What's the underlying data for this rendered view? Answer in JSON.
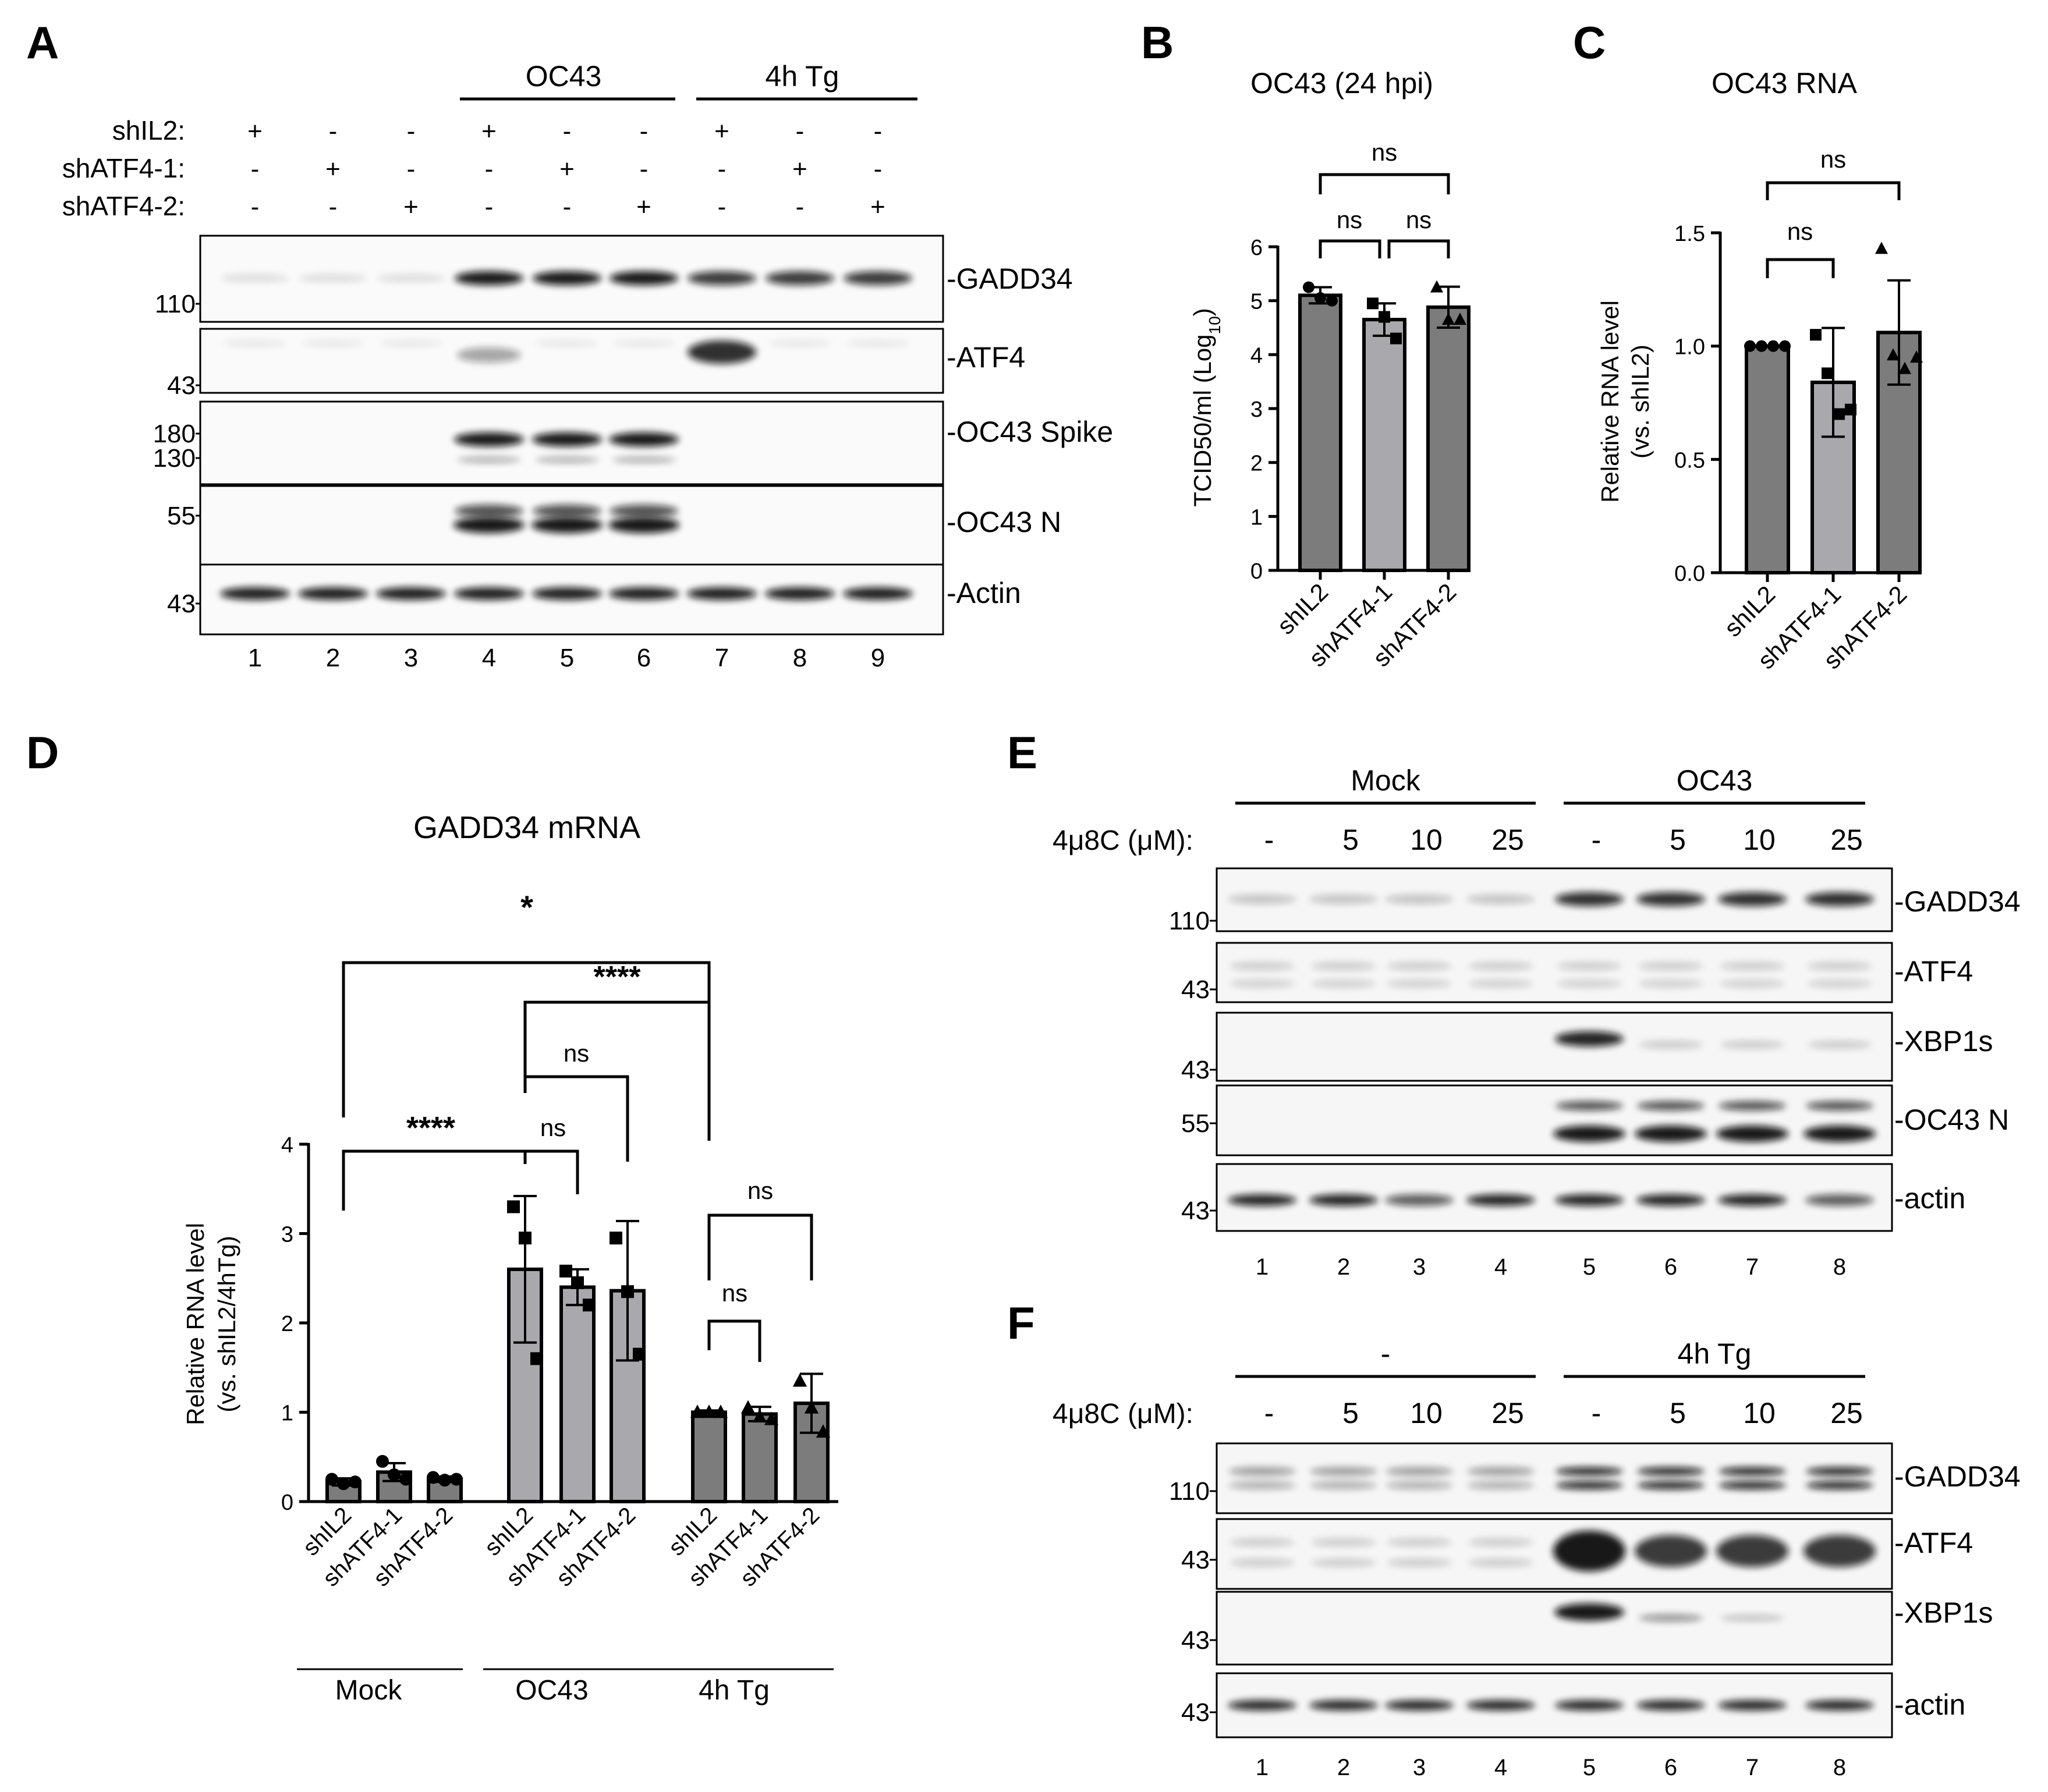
{
  "panels": {
    "A": {
      "letter": "A",
      "groups": [
        "OC43",
        "4h Tg"
      ],
      "rows": [
        {
          "label": "shIL2:",
          "signs": [
            "+",
            "-",
            "-",
            "+",
            "-",
            "-",
            "+",
            "-",
            "-"
          ]
        },
        {
          "label": "shATF4-1:",
          "signs": [
            "-",
            "+",
            "-",
            "-",
            "+",
            "-",
            "-",
            "+",
            "-"
          ]
        },
        {
          "label": "shATF4-2:",
          "signs": [
            "-",
            "-",
            "+",
            "-",
            "-",
            "+",
            "-",
            "-",
            "+"
          ]
        }
      ],
      "blots": [
        {
          "label": "-GADD34",
          "markers": [
            "110"
          ]
        },
        {
          "label": "-ATF4",
          "markers": [
            "43"
          ]
        },
        {
          "label": "-OC43 Spike",
          "markers": [
            "180",
            "130"
          ]
        },
        {
          "label": "-OC43 N",
          "markers": [
            "55"
          ]
        },
        {
          "label": "-Actin",
          "markers": [
            "43"
          ]
        }
      ],
      "lanes": [
        "1",
        "2",
        "3",
        "4",
        "5",
        "6",
        "7",
        "8",
        "9"
      ]
    },
    "B": {
      "letter": "B"
    },
    "C": {
      "letter": "C"
    },
    "D": {
      "letter": "D"
    },
    "E": {
      "letter": "E",
      "groups": [
        "Mock",
        "OC43"
      ],
      "dose_label": "4μ8C (μM):",
      "doses": [
        "-",
        "5",
        "10",
        "25",
        "-",
        "5",
        "10",
        "25"
      ],
      "blots": [
        {
          "label": "-GADD34",
          "markers": [
            "110"
          ]
        },
        {
          "label": "-ATF4",
          "markers": [
            "43"
          ]
        },
        {
          "label": "-XBP1s",
          "markers": [
            "43"
          ]
        },
        {
          "label": "-OC43 N",
          "markers": [
            "55"
          ]
        },
        {
          "label": "-actin",
          "markers": [
            "43"
          ]
        }
      ],
      "lanes": [
        "1",
        "2",
        "3",
        "4",
        "5",
        "6",
        "7",
        "8"
      ]
    },
    "F": {
      "letter": "F",
      "groups": [
        "-",
        "4h Tg"
      ],
      "dose_label": "4μ8C (μM):",
      "doses": [
        "-",
        "5",
        "10",
        "25",
        "-",
        "5",
        "10",
        "25"
      ],
      "blots": [
        {
          "label": "-GADD34",
          "markers": [
            "110"
          ]
        },
        {
          "label": "-ATF4",
          "markers": [
            "43"
          ]
        },
        {
          "label": "-XBP1s",
          "markers": [
            "43"
          ]
        },
        {
          "label": "-actin",
          "markers": [
            "43"
          ]
        }
      ],
      "lanes": [
        "1",
        "2",
        "3",
        "4",
        "5",
        "6",
        "7",
        "8"
      ]
    }
  },
  "chart_data": [
    {
      "panel": "B",
      "type": "bar",
      "title": "OC43 (24 hpi)",
      "ylabel": "TCID50/ml (Log10)",
      "ylim": [
        0,
        6
      ],
      "yticks": [
        "0",
        "1",
        "2",
        "3",
        "4",
        "5",
        "6"
      ],
      "categories": [
        "shIL2",
        "shATF4-1",
        "shATF4-2"
      ],
      "values": [
        5.1,
        4.65,
        4.88
      ],
      "errors": [
        0.15,
        0.3,
        0.38
      ],
      "points": [
        [
          5.25,
          5.05,
          5.0
        ],
        [
          4.95,
          4.7,
          4.3
        ],
        [
          5.25,
          4.65,
          4.65
        ]
      ],
      "markers": [
        "circle",
        "square",
        "triangle"
      ],
      "colors": [
        "#7c7c7c",
        "#a9a9ad",
        "#7c7c7c"
      ],
      "significance": [
        "ns",
        "ns",
        "ns"
      ]
    },
    {
      "panel": "C",
      "type": "bar",
      "title": "OC43 RNA",
      "ylabel": "Relative RNA level (vs. shIL2)",
      "ylim": [
        0,
        1.5
      ],
      "yticks": [
        "0.0",
        "0.5",
        "1.0",
        "1.5"
      ],
      "categories": [
        "shIL2",
        "shATF4-1",
        "shATF4-2"
      ],
      "values": [
        1.0,
        0.84,
        1.06
      ],
      "errors": [
        0.0,
        0.24,
        0.23
      ],
      "points": [
        [
          1.0,
          1.0,
          1.0,
          1.0
        ],
        [
          1.05,
          0.88,
          0.7,
          0.72
        ],
        [
          1.43,
          0.96,
          0.9,
          0.95
        ]
      ],
      "markers": [
        "circle",
        "square",
        "triangle"
      ],
      "colors": [
        "#7c7c7c",
        "#a9a9ad",
        "#7c7c7c"
      ],
      "significance": [
        "ns",
        "ns"
      ]
    },
    {
      "panel": "D",
      "type": "bar",
      "title": "GADD34 mRNA",
      "ylabel": "Relative RNA level (vs. shIL2/4hTg)",
      "ylim": [
        0,
        4
      ],
      "yticks": [
        "0",
        "1",
        "2",
        "3",
        "4"
      ],
      "groups": [
        "Mock",
        "OC43",
        "4h Tg"
      ],
      "categories": [
        "shIL2",
        "shATF4-1",
        "shATF4-2",
        "shIL2",
        "shATF4-1",
        "shATF4-2",
        "shIL2",
        "shATF4-1",
        "shATF4-2"
      ],
      "values": [
        0.22,
        0.33,
        0.25,
        2.6,
        2.4,
        2.36,
        1.0,
        0.98,
        1.1
      ],
      "errors": [
        0.04,
        0.1,
        0.03,
        0.82,
        0.2,
        0.78,
        0.02,
        0.08,
        0.33
      ],
      "points": [
        [
          0.25,
          0.2,
          0.22
        ],
        [
          0.45,
          0.3,
          0.25
        ],
        [
          0.27,
          0.24,
          0.25
        ],
        [
          3.3,
          2.95,
          1.6
        ],
        [
          2.58,
          2.45,
          2.2
        ],
        [
          2.95,
          2.35,
          1.65
        ],
        [
          1.0,
          1.0,
          1.0
        ],
        [
          1.05,
          0.95,
          0.92
        ],
        [
          1.35,
          1.05,
          0.78
        ]
      ],
      "markers": [
        "circle",
        "circle",
        "circle",
        "square",
        "square",
        "square",
        "triangle",
        "triangle",
        "triangle"
      ],
      "colors": [
        "#7c7c7c",
        "#7c7c7c",
        "#7c7c7c",
        "#a9a9ad",
        "#a9a9ad",
        "#a9a9ad",
        "#7c7c7c",
        "#7c7c7c",
        "#7c7c7c"
      ],
      "significance": [
        "*",
        "****",
        "ns",
        "****",
        "ns",
        "ns",
        "ns"
      ]
    }
  ]
}
